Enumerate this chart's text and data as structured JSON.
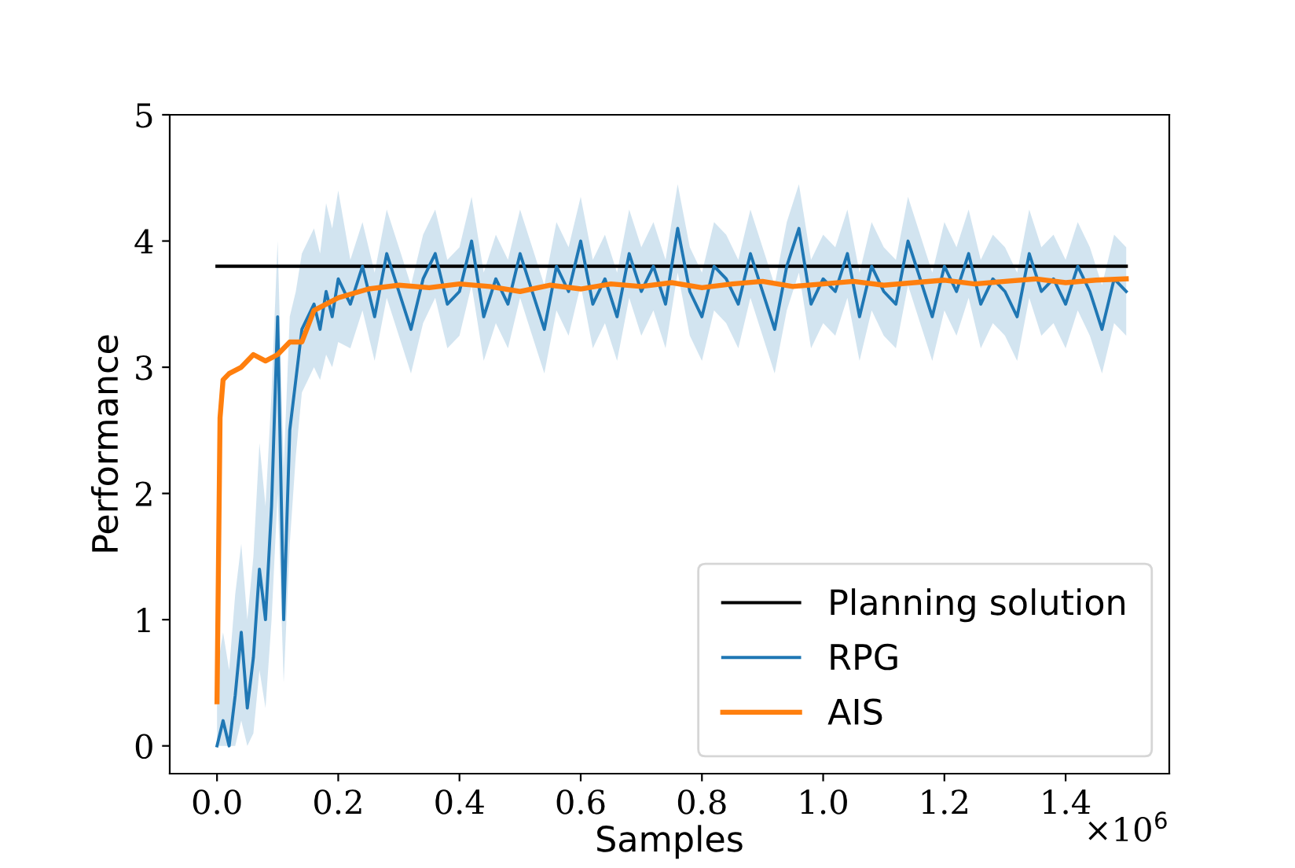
{
  "chart_data": {
    "type": "line",
    "xlabel": "Samples",
    "ylabel": "Performance",
    "xlim": [
      -0.078,
      1.571
    ],
    "ylim": [
      -0.22,
      5
    ],
    "xticks": [
      {
        "value": 0,
        "label": "0.0"
      },
      {
        "value": 0.2,
        "label": "0.2"
      },
      {
        "value": 0.4,
        "label": "0.4"
      },
      {
        "value": 0.6,
        "label": "0.6"
      },
      {
        "value": 0.8,
        "label": "0.8"
      },
      {
        "value": 1.0,
        "label": "1.0"
      },
      {
        "value": 1.2,
        "label": "1.2"
      },
      {
        "value": 1.4,
        "label": "1.4"
      }
    ],
    "yticks": [
      0,
      1,
      2,
      3,
      4,
      5
    ],
    "legend": "bottom right",
    "annotations": [
      "×10$^{6}$"
    ],
    "series": [
      {
        "name": "Planning solution",
        "color": "#000000",
        "x": [
          0,
          1.5
        ],
        "values": [
          3.8,
          3.8
        ]
      },
      {
        "name": "RPG",
        "color": "#1f77b4",
        "x": [
          0,
          0.01,
          0.02,
          0.03,
          0.04,
          0.05,
          0.06,
          0.07,
          0.08,
          0.09,
          0.1,
          0.11,
          0.12,
          0.13,
          0.14,
          0.15,
          0.16,
          0.17,
          0.18,
          0.19,
          0.2,
          0.22,
          0.24,
          0.26,
          0.28,
          0.3,
          0.32,
          0.34,
          0.36,
          0.38,
          0.4,
          0.42,
          0.44,
          0.46,
          0.48,
          0.5,
          0.52,
          0.54,
          0.56,
          0.58,
          0.6,
          0.62,
          0.64,
          0.66,
          0.68,
          0.7,
          0.72,
          0.74,
          0.76,
          0.78,
          0.8,
          0.82,
          0.84,
          0.86,
          0.88,
          0.9,
          0.92,
          0.94,
          0.96,
          0.98,
          1.0,
          1.02,
          1.04,
          1.06,
          1.08,
          1.1,
          1.12,
          1.14,
          1.16,
          1.18,
          1.2,
          1.22,
          1.24,
          1.26,
          1.28,
          1.3,
          1.32,
          1.34,
          1.36,
          1.38,
          1.4,
          1.42,
          1.44,
          1.46,
          1.48,
          1.5
        ],
        "values": [
          0,
          0.2,
          0.0,
          0.4,
          0.9,
          0.3,
          0.7,
          1.4,
          1.0,
          1.9,
          3.4,
          1.0,
          2.5,
          2.9,
          3.3,
          3.4,
          3.5,
          3.3,
          3.6,
          3.4,
          3.7,
          3.5,
          3.8,
          3.4,
          3.9,
          3.6,
          3.3,
          3.7,
          3.9,
          3.5,
          3.6,
          4.0,
          3.4,
          3.7,
          3.5,
          3.9,
          3.6,
          3.3,
          3.8,
          3.6,
          4.0,
          3.5,
          3.7,
          3.4,
          3.9,
          3.6,
          3.8,
          3.5,
          4.1,
          3.6,
          3.4,
          3.8,
          3.7,
          3.5,
          3.9,
          3.6,
          3.3,
          3.8,
          4.1,
          3.5,
          3.7,
          3.6,
          3.9,
          3.4,
          3.8,
          3.6,
          3.5,
          4.0,
          3.7,
          3.4,
          3.8,
          3.6,
          3.9,
          3.5,
          3.7,
          3.6,
          3.4,
          3.9,
          3.6,
          3.7,
          3.5,
          3.8,
          3.6,
          3.3,
          3.7,
          3.6
        ],
        "lower": [
          0,
          0,
          0,
          0,
          0.2,
          0,
          0.1,
          0.6,
          0.3,
          1.0,
          2.0,
          0.5,
          1.6,
          2.3,
          2.8,
          2.9,
          3.0,
          2.9,
          3.1,
          3.0,
          3.2,
          3.15,
          3.45,
          3.05,
          3.55,
          3.25,
          2.95,
          3.35,
          3.55,
          3.15,
          3.25,
          3.65,
          3.05,
          3.35,
          3.15,
          3.55,
          3.25,
          2.95,
          3.45,
          3.25,
          3.65,
          3.15,
          3.35,
          3.05,
          3.55,
          3.25,
          3.45,
          3.15,
          3.75,
          3.25,
          3.05,
          3.45,
          3.35,
          3.15,
          3.55,
          3.25,
          2.95,
          3.45,
          3.75,
          3.15,
          3.35,
          3.25,
          3.55,
          3.05,
          3.45,
          3.25,
          3.15,
          3.65,
          3.35,
          3.05,
          3.45,
          3.25,
          3.55,
          3.15,
          3.35,
          3.25,
          3.05,
          3.55,
          3.25,
          3.35,
          3.15,
          3.45,
          3.25,
          2.95,
          3.35,
          3.25
        ],
        "upper": [
          0.6,
          0.9,
          0.6,
          1.2,
          1.6,
          1.0,
          1.5,
          2.4,
          1.9,
          2.8,
          4.0,
          2.2,
          3.4,
          3.6,
          3.9,
          4.0,
          4.1,
          3.9,
          4.3,
          4.1,
          4.4,
          3.85,
          4.15,
          3.75,
          4.25,
          3.95,
          3.65,
          4.05,
          4.25,
          3.85,
          3.95,
          4.35,
          3.75,
          4.05,
          3.85,
          4.25,
          3.95,
          3.65,
          4.15,
          3.95,
          4.35,
          3.85,
          4.05,
          3.75,
          4.25,
          3.95,
          4.15,
          3.85,
          4.45,
          3.95,
          3.75,
          4.15,
          4.05,
          3.85,
          4.25,
          3.95,
          3.65,
          4.15,
          4.45,
          3.85,
          4.05,
          3.95,
          4.25,
          3.75,
          4.15,
          3.95,
          3.85,
          4.35,
          4.05,
          3.75,
          4.15,
          3.95,
          4.25,
          3.85,
          4.05,
          3.95,
          3.75,
          4.25,
          3.95,
          4.05,
          3.85,
          4.15,
          3.95,
          3.65,
          4.05,
          3.95
        ]
      },
      {
        "name": "AIS",
        "color": "#ff7f0e",
        "x": [
          0,
          0.005,
          0.01,
          0.02,
          0.04,
          0.06,
          0.08,
          0.1,
          0.12,
          0.14,
          0.16,
          0.18,
          0.2,
          0.25,
          0.3,
          0.35,
          0.4,
          0.45,
          0.5,
          0.55,
          0.6,
          0.65,
          0.7,
          0.75,
          0.8,
          0.85,
          0.9,
          0.95,
          1.0,
          1.05,
          1.1,
          1.15,
          1.2,
          1.25,
          1.3,
          1.35,
          1.4,
          1.45,
          1.5
        ],
        "values": [
          0.35,
          2.6,
          2.9,
          2.95,
          3.0,
          3.1,
          3.05,
          3.1,
          3.2,
          3.2,
          3.45,
          3.5,
          3.55,
          3.62,
          3.65,
          3.63,
          3.66,
          3.64,
          3.6,
          3.65,
          3.62,
          3.66,
          3.64,
          3.67,
          3.63,
          3.66,
          3.68,
          3.64,
          3.66,
          3.68,
          3.65,
          3.67,
          3.69,
          3.66,
          3.68,
          3.7,
          3.67,
          3.69,
          3.7
        ]
      }
    ]
  }
}
